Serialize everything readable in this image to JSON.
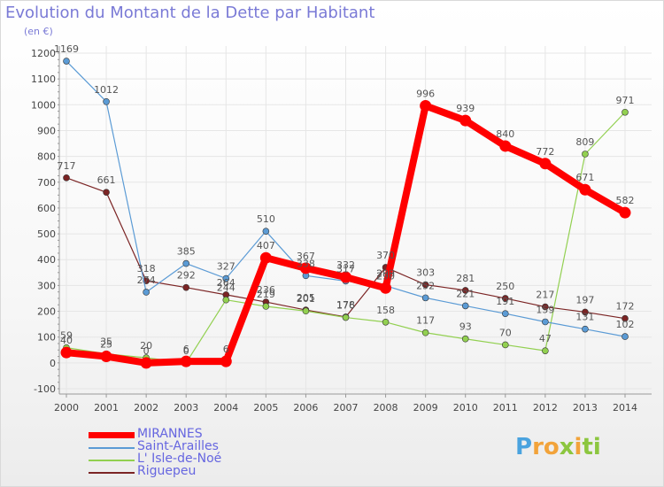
{
  "title": "Evolution du Montant de la Dette par Habitant",
  "unit": "(en €)",
  "brand": {
    "text": "Proxiti"
  },
  "colors": {
    "MIRANNES": "#ff0000",
    "Saint-Arailles": "#5b9bd5",
    "L' Isle-de-Noé": "#92d050",
    "Riguepeu": "#7b2424"
  },
  "chart_data": {
    "type": "line",
    "title": "Evolution du Montant de la Dette par Habitant",
    "subtitle": "(en €)",
    "xlabel": "",
    "ylabel": "",
    "x": [
      "2000",
      "2001",
      "2002",
      "2003",
      "2004",
      "2005",
      "2006",
      "2007",
      "2008",
      "2009",
      "2010",
      "2011",
      "2012",
      "2013",
      "2014"
    ],
    "ylim": [
      -100,
      1200
    ],
    "yticks": [
      -100,
      0,
      100,
      200,
      300,
      400,
      500,
      600,
      700,
      800,
      900,
      1000,
      1100,
      1200
    ],
    "grid": true,
    "legend": "bottom-left",
    "series": [
      {
        "name": "MIRANNES",
        "values": [
          40,
          25,
          0,
          6,
          6,
          407,
          367,
          332,
          290,
          996,
          939,
          840,
          772,
          671,
          582
        ]
      },
      {
        "name": "Saint-Arailles",
        "values": [
          1169,
          1012,
          274,
          385,
          327,
          510,
          338,
          317,
          299,
          252,
          221,
          191,
          159,
          131,
          102
        ]
      },
      {
        "name": "L' Isle-de-Noé",
        "values": [
          59,
          35,
          20,
          0,
          244,
          219,
          201,
          176,
          158,
          117,
          93,
          70,
          47,
          809,
          971
        ]
      },
      {
        "name": "Riguepeu",
        "values": [
          717,
          661,
          318,
          292,
          264,
          236,
          205,
          178,
          370,
          303,
          281,
          250,
          217,
          197,
          172
        ]
      }
    ]
  }
}
